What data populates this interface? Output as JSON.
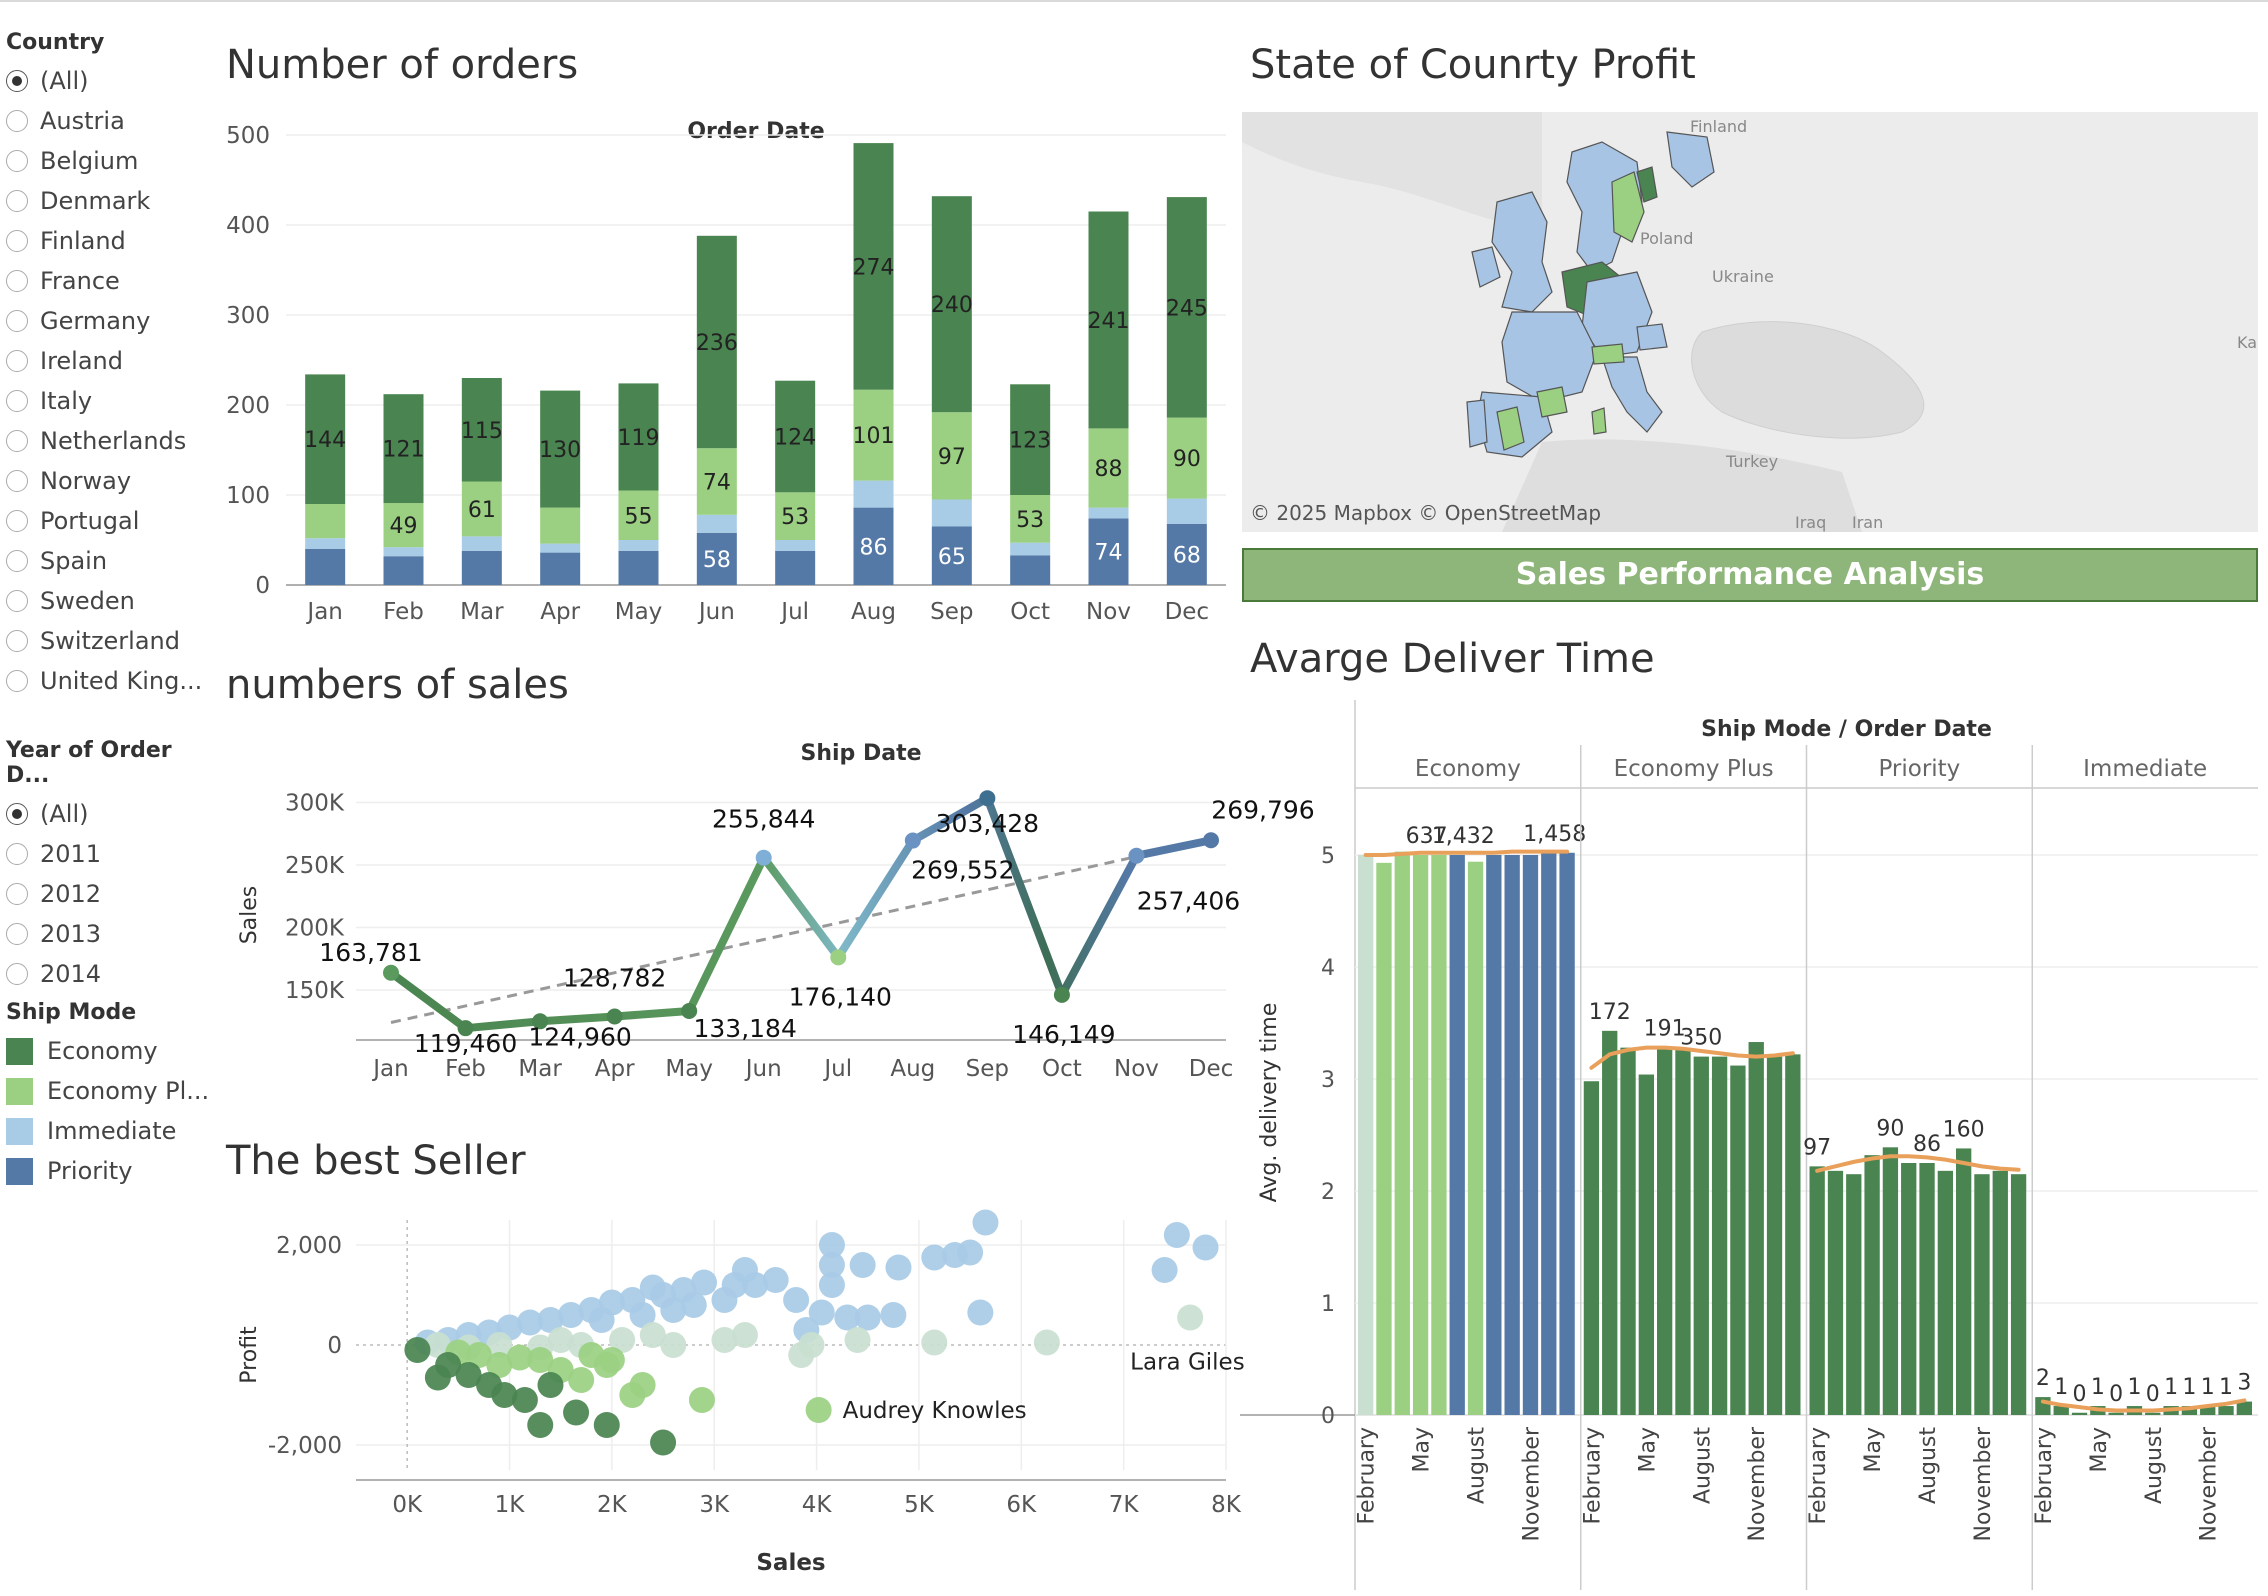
{
  "filters": {
    "country": {
      "title": "Country",
      "selected": 0,
      "options": [
        "(All)",
        "Austria",
        "Belgium",
        "Denmark",
        "Finland",
        "France",
        "Germany",
        "Ireland",
        "Italy",
        "Netherlands",
        "Norway",
        "Portugal",
        "Spain",
        "Sweden",
        "Switzerland",
        "United King..."
      ]
    },
    "year": {
      "title": "Year of Order D...",
      "selected": 0,
      "options": [
        "(All)",
        "2011",
        "2012",
        "2013",
        "2014"
      ]
    }
  },
  "legend": {
    "title": "Ship Mode",
    "items": [
      {
        "label": "Economy",
        "color": "#4a8450"
      },
      {
        "label": "Economy Pl...",
        "color": "#9bd082"
      },
      {
        "label": "Immediate",
        "color": "#a8cbe6"
      },
      {
        "label": "Priority",
        "color": "#5579a6"
      }
    ]
  },
  "titles": {
    "orders": "Number of orders",
    "sales": "numbers of sales",
    "seller": "The best Seller",
    "map": "State of Counrty Profit",
    "banner": "Sales Performance Analysis",
    "delivery": "Avarge Deliver Time"
  },
  "map": {
    "attribution": "© 2025 Mapbox  © OpenStreetMap",
    "labels": [
      "Finland",
      "Poland",
      "Ukraine",
      "Turkey",
      "Iraq",
      "Iran",
      "Ka"
    ]
  },
  "chart_data": [
    {
      "id": "orders",
      "type": "bar",
      "stacked": true,
      "title": "Order Date",
      "categories": [
        "Jan",
        "Feb",
        "Mar",
        "Apr",
        "May",
        "Jun",
        "Jul",
        "Aug",
        "Sep",
        "Oct",
        "Nov",
        "Dec"
      ],
      "ylim": [
        0,
        500
      ],
      "yticks": [
        0,
        100,
        200,
        300,
        400,
        500
      ],
      "series": [
        {
          "name": "Priority",
          "color": "#5579a6",
          "values": [
            40,
            32,
            38,
            36,
            38,
            58,
            38,
            86,
            65,
            33,
            74,
            68
          ],
          "labels": [
            null,
            null,
            null,
            null,
            null,
            "58",
            null,
            "86",
            "65",
            null,
            "74",
            "68"
          ]
        },
        {
          "name": "Immediate",
          "color": "#a8cbe6",
          "values": [
            12,
            10,
            16,
            10,
            12,
            20,
            12,
            30,
            30,
            14,
            12,
            28
          ],
          "labels": [
            null,
            null,
            null,
            null,
            null,
            null,
            null,
            null,
            null,
            null,
            null,
            null
          ]
        },
        {
          "name": "Economy Plus",
          "color": "#9bd082",
          "values": [
            38,
            49,
            61,
            40,
            55,
            74,
            53,
            101,
            97,
            53,
            88,
            90
          ],
          "labels": [
            null,
            "49",
            "61",
            null,
            "55",
            "74",
            "53",
            "101",
            "97",
            "53",
            "88",
            "90"
          ]
        },
        {
          "name": "Economy",
          "color": "#4a8450",
          "values": [
            144,
            121,
            115,
            130,
            119,
            236,
            124,
            274,
            240,
            123,
            241,
            245
          ],
          "labels": [
            "144",
            "121",
            "115",
            "130",
            "119",
            "236",
            "124",
            "274",
            "240",
            "123",
            "241",
            "245"
          ]
        }
      ]
    },
    {
      "id": "sales",
      "type": "line",
      "title": "Ship Date",
      "ylabel": "Sales",
      "categories": [
        "Jan",
        "Feb",
        "Mar",
        "Apr",
        "May",
        "Jun",
        "Jul",
        "Aug",
        "Sep",
        "Oct",
        "Nov",
        "Dec"
      ],
      "values": [
        163781,
        119460,
        124960,
        128782,
        133184,
        255844,
        176140,
        269552,
        303428,
        146149,
        257406,
        269796
      ],
      "labels": [
        "163,781",
        "119,460",
        "124,960",
        "128,782",
        "133,184",
        "255,844",
        "176,140",
        "269,552",
        "303,428",
        "146,149",
        "257,406",
        "269,796"
      ],
      "yticks": [
        150000,
        200000,
        250000,
        300000
      ],
      "ytick_labels": [
        "150K",
        "200K",
        "250K",
        "300K"
      ],
      "ylim": [
        110000,
        310000
      ],
      "trend": [
        124000,
        270000
      ]
    },
    {
      "id": "seller",
      "type": "scatter",
      "xlabel": "Sales",
      "ylabel": "Profit",
      "xlim": [
        -500,
        8000
      ],
      "ylim": [
        -2500,
        2500
      ],
      "xticks": [
        0,
        1000,
        2000,
        3000,
        4000,
        5000,
        6000,
        7000,
        8000
      ],
      "xtick_labels": [
        "0K",
        "1K",
        "2K",
        "3K",
        "4K",
        "5K",
        "6K",
        "7K",
        "8K"
      ],
      "yticks": [
        -2000,
        0,
        2000
      ],
      "ytick_labels": [
        "-2,000",
        "0",
        "2,000"
      ],
      "annotations": [
        {
          "label": "Lara Giles",
          "x": 7650,
          "y": 550
        },
        {
          "label": "Audrey Knowles",
          "x": 4020,
          "y": -1300
        }
      ],
      "points": [
        [
          7400,
          1500,
          "#a8cbe6"
        ],
        [
          7520,
          2200,
          "#a8cbe6"
        ],
        [
          7800,
          1950,
          "#a8cbe6"
        ],
        [
          7650,
          550,
          "#c9dfd0"
        ],
        [
          5650,
          2450,
          "#a8cbe6"
        ],
        [
          5500,
          1850,
          "#a8cbe6"
        ],
        [
          5350,
          1800,
          "#a8cbe6"
        ],
        [
          5150,
          1750,
          "#a8cbe6"
        ],
        [
          4800,
          1550,
          "#a8cbe6"
        ],
        [
          4450,
          1600,
          "#a8cbe6"
        ],
        [
          4150,
          1600,
          "#a8cbe6"
        ],
        [
          4150,
          2000,
          "#a8cbe6"
        ],
        [
          4150,
          1200,
          "#a8cbe6"
        ],
        [
          4050,
          650,
          "#a8cbe6"
        ],
        [
          3900,
          300,
          "#a8cbe6"
        ],
        [
          3800,
          900,
          "#a8cbe6"
        ],
        [
          3600,
          1300,
          "#a8cbe6"
        ],
        [
          3400,
          1200,
          "#a8cbe6"
        ],
        [
          3300,
          1500,
          "#a8cbe6"
        ],
        [
          3200,
          1200,
          "#a8cbe6"
        ],
        [
          3100,
          900,
          "#a8cbe6"
        ],
        [
          2900,
          1250,
          "#a8cbe6"
        ],
        [
          2700,
          1100,
          "#a8cbe6"
        ],
        [
          2500,
          1000,
          "#a8cbe6"
        ],
        [
          2400,
          1150,
          "#a8cbe6"
        ],
        [
          2200,
          900,
          "#a8cbe6"
        ],
        [
          2000,
          850,
          "#a8cbe6"
        ],
        [
          1800,
          700,
          "#a8cbe6"
        ],
        [
          1600,
          600,
          "#a8cbe6"
        ],
        [
          1400,
          500,
          "#a8cbe6"
        ],
        [
          1200,
          450,
          "#a8cbe6"
        ],
        [
          1000,
          350,
          "#a8cbe6"
        ],
        [
          800,
          250,
          "#a8cbe6"
        ],
        [
          600,
          200,
          "#a8cbe6"
        ],
        [
          400,
          100,
          "#a8cbe6"
        ],
        [
          200,
          50,
          "#a8cbe6"
        ],
        [
          2800,
          800,
          "#a8cbe6"
        ],
        [
          2600,
          700,
          "#a8cbe6"
        ],
        [
          2300,
          600,
          "#a8cbe6"
        ],
        [
          1900,
          500,
          "#a8cbe6"
        ],
        [
          5600,
          650,
          "#a8cbe6"
        ],
        [
          4750,
          600,
          "#a8cbe6"
        ],
        [
          4500,
          550,
          "#a8cbe6"
        ],
        [
          4300,
          550,
          "#a8cbe6"
        ],
        [
          6250,
          50,
          "#c9dfd0"
        ],
        [
          5150,
          50,
          "#c9dfd0"
        ],
        [
          4400,
          100,
          "#c9dfd0"
        ],
        [
          3950,
          0,
          "#c9dfd0"
        ],
        [
          3850,
          -200,
          "#c9dfd0"
        ],
        [
          3300,
          200,
          "#c9dfd0"
        ],
        [
          3100,
          100,
          "#c9dfd0"
        ],
        [
          2600,
          0,
          "#c9dfd0"
        ],
        [
          2400,
          200,
          "#c9dfd0"
        ],
        [
          2100,
          100,
          "#c9dfd0"
        ],
        [
          1700,
          0,
          "#c9dfd0"
        ],
        [
          1500,
          100,
          "#c9dfd0"
        ],
        [
          1300,
          -50,
          "#c9dfd0"
        ],
        [
          900,
          0,
          "#c9dfd0"
        ],
        [
          600,
          -50,
          "#c9dfd0"
        ],
        [
          300,
          0,
          "#c9dfd0"
        ],
        [
          4020,
          -1300,
          "#9bd082"
        ],
        [
          2880,
          -1100,
          "#9bd082"
        ],
        [
          2300,
          -800,
          "#9bd082"
        ],
        [
          2200,
          -1000,
          "#9bd082"
        ],
        [
          1950,
          -400,
          "#9bd082"
        ],
        [
          1700,
          -700,
          "#9bd082"
        ],
        [
          1500,
          -500,
          "#9bd082"
        ],
        [
          1300,
          -300,
          "#9bd082"
        ],
        [
          1100,
          -250,
          "#9bd082"
        ],
        [
          900,
          -400,
          "#9bd082"
        ],
        [
          700,
          -200,
          "#9bd082"
        ],
        [
          500,
          -150,
          "#9bd082"
        ],
        [
          1800,
          -200,
          "#9bd082"
        ],
        [
          2000,
          -300,
          "#9bd082"
        ],
        [
          2500,
          -1950,
          "#4a8450"
        ],
        [
          1950,
          -1600,
          "#4a8450"
        ],
        [
          1300,
          -1600,
          "#4a8450"
        ],
        [
          1650,
          -1350,
          "#4a8450"
        ],
        [
          1150,
          -1100,
          "#4a8450"
        ],
        [
          950,
          -1000,
          "#4a8450"
        ],
        [
          800,
          -800,
          "#4a8450"
        ],
        [
          600,
          -600,
          "#4a8450"
        ],
        [
          400,
          -400,
          "#4a8450"
        ],
        [
          300,
          -650,
          "#4a8450"
        ],
        [
          1400,
          -800,
          "#4a8450"
        ],
        [
          100,
          -100,
          "#4a8450"
        ]
      ]
    },
    {
      "id": "delivery",
      "type": "bar",
      "title": "Ship Mode / Order Date",
      "ylabel": "Avg. delivery time",
      "ylim": [
        0,
        5.5
      ],
      "yticks": [
        0,
        1,
        2,
        3,
        4,
        5
      ],
      "groups": [
        "Economy",
        "Economy Plus",
        "Priority",
        "Immediate"
      ],
      "month_ticks": [
        "February",
        "May",
        "August",
        "November"
      ],
      "bars": [
        [
          [
            5.0,
            "#c9dfd0",
            null
          ],
          [
            4.93,
            "#9bd082",
            null
          ],
          [
            5.03,
            "#9bd082",
            null
          ],
          [
            5.0,
            "#9bd082",
            "637"
          ],
          [
            5.0,
            "#9bd082",
            null
          ],
          [
            5.0,
            "#5579a6",
            "1,432"
          ],
          [
            4.94,
            "#9bd082",
            null
          ],
          [
            5.0,
            "#5579a6",
            null
          ],
          [
            5.0,
            "#5579a6",
            null
          ],
          [
            5.0,
            "#5579a6",
            null
          ],
          [
            5.02,
            "#5579a6",
            "1,458"
          ],
          [
            5.02,
            "#5579a6",
            null
          ]
        ],
        [
          [
            2.98,
            "#4a8450",
            null
          ],
          [
            3.43,
            "#4a8450",
            "172"
          ],
          [
            3.28,
            "#4a8450",
            null
          ],
          [
            3.04,
            "#4a8450",
            null
          ],
          [
            3.28,
            "#4a8450",
            "191"
          ],
          [
            3.28,
            "#4a8450",
            null
          ],
          [
            3.2,
            "#4a8450",
            "350"
          ],
          [
            3.2,
            "#4a8450",
            null
          ],
          [
            3.12,
            "#4a8450",
            null
          ],
          [
            3.33,
            "#4a8450",
            null
          ],
          [
            3.2,
            "#4a8450",
            null
          ],
          [
            3.22,
            "#4a8450",
            null
          ]
        ],
        [
          [
            2.22,
            "#4a8450",
            "97"
          ],
          [
            2.18,
            "#4a8450",
            null
          ],
          [
            2.15,
            "#4a8450",
            null
          ],
          [
            2.32,
            "#4a8450",
            null
          ],
          [
            2.39,
            "#4a8450",
            "90"
          ],
          [
            2.25,
            "#4a8450",
            null
          ],
          [
            2.25,
            "#4a8450",
            "86"
          ],
          [
            2.18,
            "#4a8450",
            null
          ],
          [
            2.38,
            "#4a8450",
            "160"
          ],
          [
            2.15,
            "#4a8450",
            null
          ],
          [
            2.18,
            "#4a8450",
            null
          ],
          [
            2.15,
            "#4a8450",
            null
          ]
        ],
        [
          [
            0.16,
            "#4a8450",
            "2"
          ],
          [
            0.08,
            "#4a8450",
            "1"
          ],
          [
            0.02,
            "#4a8450",
            "0"
          ],
          [
            0.08,
            "#4a8450",
            "1"
          ],
          [
            0.02,
            "#4a8450",
            "0"
          ],
          [
            0.08,
            "#4a8450",
            "1"
          ],
          [
            0.02,
            "#4a8450",
            "0"
          ],
          [
            0.08,
            "#4a8450",
            "1"
          ],
          [
            0.08,
            "#4a8450",
            "1"
          ],
          [
            0.08,
            "#4a8450",
            "1"
          ],
          [
            0.08,
            "#4a8450",
            "1"
          ],
          [
            0.12,
            "#4a8450",
            "3"
          ]
        ]
      ],
      "trend_levels": [
        [
          5.0,
          5.0,
          5.01,
          5.02,
          5.02,
          5.02,
          5.02,
          5.02,
          5.03,
          5.03,
          5.03,
          5.03
        ],
        [
          3.1,
          3.22,
          3.26,
          3.28,
          3.28,
          3.27,
          3.25,
          3.23,
          3.21,
          3.2,
          3.21,
          3.23
        ],
        [
          2.18,
          2.22,
          2.26,
          2.29,
          2.31,
          2.31,
          2.3,
          2.28,
          2.25,
          2.22,
          2.2,
          2.19
        ],
        [
          0.12,
          0.09,
          0.07,
          0.05,
          0.04,
          0.04,
          0.04,
          0.05,
          0.06,
          0.08,
          0.1,
          0.13
        ]
      ]
    }
  ]
}
